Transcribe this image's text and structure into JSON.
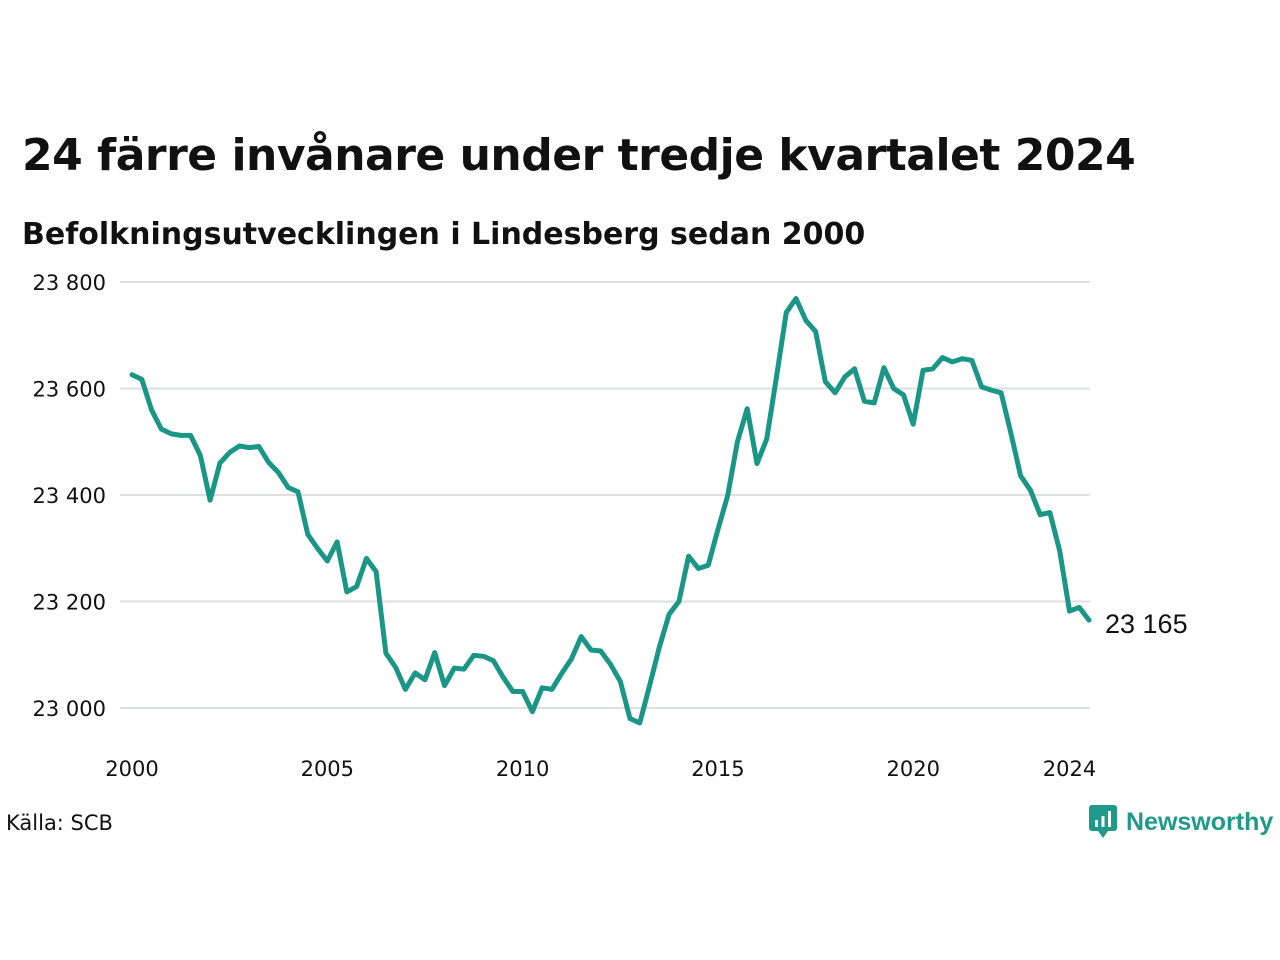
{
  "chart_data": {
    "type": "line",
    "title": "24 färre invånare under tredje kvartalet 2024",
    "subtitle": "Befolkningsutvecklingen i Lindesberg sedan 2000",
    "xlabel": "",
    "ylabel": "",
    "x_ticks": [
      "2000",
      "2005",
      "2010",
      "2015",
      "2020",
      "2024"
    ],
    "y_ticks": [
      "23 000",
      "23 200",
      "23 400",
      "23 600",
      "23 800"
    ],
    "x_range": [
      2000,
      2024.5
    ],
    "ylim": [
      22920,
      23830
    ],
    "grid": "horizontal",
    "line_color": "#1a9686",
    "end_label": "23 165",
    "series": [
      {
        "x": [
          2000.0,
          2000.25,
          2000.5,
          2000.75,
          2001.0,
          2001.25,
          2001.5,
          2001.75,
          2002.0,
          2002.25,
          2002.5,
          2002.75,
          2003.0,
          2003.25,
          2003.5,
          2003.75,
          2004.0,
          2004.25,
          2004.5,
          2004.75,
          2005.0,
          2005.25,
          2005.5,
          2005.75,
          2006.0,
          2006.25,
          2006.5,
          2006.75,
          2007.0,
          2007.25,
          2007.5,
          2007.75,
          2008.0,
          2008.25,
          2008.5,
          2008.75,
          2009.0,
          2009.25,
          2009.5,
          2009.75,
          2010.0,
          2010.25,
          2010.5,
          2010.75,
          2011.0,
          2011.25,
          2011.5,
          2011.75,
          2012.0,
          2012.25,
          2012.5,
          2012.75,
          2013.0,
          2013.25,
          2013.5,
          2013.75,
          2014.0,
          2014.25,
          2014.5,
          2014.75,
          2015.0,
          2015.25,
          2015.5,
          2015.75,
          2016.0,
          2016.25,
          2016.5,
          2016.75,
          2017.0,
          2017.25,
          2017.5,
          2017.75,
          2018.0,
          2018.25,
          2018.5,
          2018.75,
          2019.0,
          2019.25,
          2019.5,
          2019.75,
          2020.0,
          2020.25,
          2020.5,
          2020.75,
          2021.0,
          2021.25,
          2021.5,
          2021.75,
          2022.0,
          2022.25,
          2022.5,
          2022.75,
          2023.0,
          2023.25,
          2023.5,
          2023.75,
          2024.0,
          2024.25,
          2024.5
        ],
        "values": [
          23626,
          23617,
          23560,
          23524,
          23515,
          23512,
          23512,
          23474,
          23390,
          23460,
          23480,
          23492,
          23489,
          23491,
          23461,
          23442,
          23414,
          23406,
          23326,
          23300,
          23276,
          23312,
          23218,
          23228,
          23281,
          23256,
          23103,
          23076,
          23035,
          23066,
          23053,
          23104,
          23042,
          23075,
          23073,
          23099,
          23097,
          23089,
          23058,
          23031,
          23031,
          22993,
          23038,
          23035,
          23065,
          23092,
          23134,
          23109,
          23107,
          23082,
          23050,
          22980,
          22972,
          23042,
          23114,
          23176,
          23200,
          23285,
          23262,
          23268,
          23335,
          23399,
          23500,
          23562,
          23459,
          23505,
          23622,
          23743,
          23769,
          23728,
          23707,
          23613,
          23592,
          23622,
          23637,
          23576,
          23573,
          23639,
          23600,
          23588,
          23533,
          23634,
          23637,
          23658,
          23650,
          23656,
          23653,
          23603,
          23597,
          23592,
          23516,
          23436,
          23409,
          23363,
          23367,
          23295,
          23182,
          23189,
          23165
        ]
      }
    ]
  },
  "source": "Källa: SCB",
  "brand": {
    "name": "Newsworthy",
    "color": "#1f9a8a"
  }
}
